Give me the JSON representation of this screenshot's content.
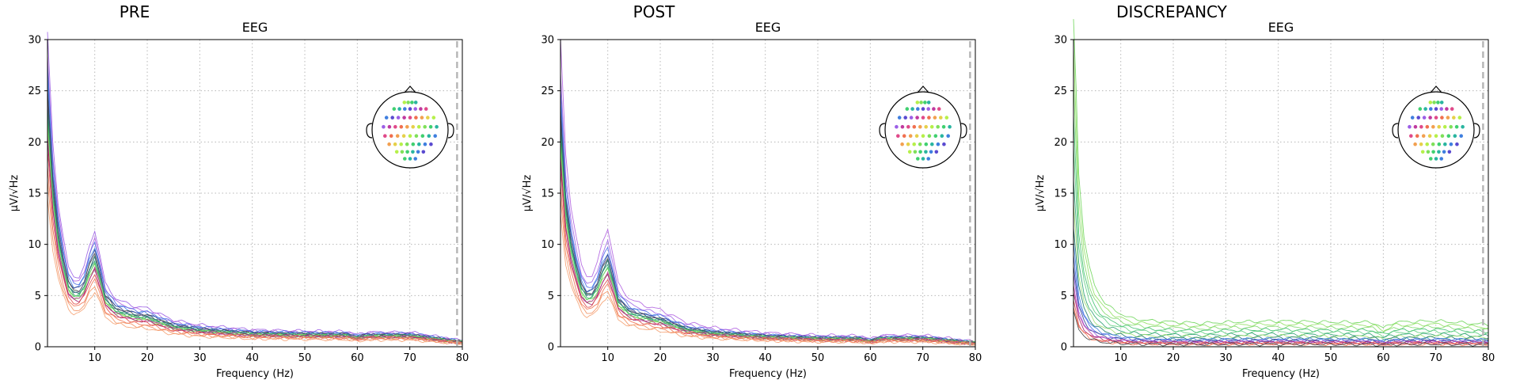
{
  "chart_data": [
    {
      "type": "line",
      "panel_title": "PRE",
      "title": "EEG",
      "xlabel": "Frequency (Hz)",
      "ylabel": "µV/√Hz",
      "xlim": [
        1,
        80
      ],
      "ylim": [
        0,
        30
      ],
      "xticks": [
        10,
        20,
        30,
        40,
        50,
        60,
        70,
        80
      ],
      "yticks": [
        0,
        5,
        10,
        15,
        20,
        25,
        30
      ],
      "grid": true,
      "cutoff_line_hz": 79,
      "sensor_inset": "top-right",
      "profile": {
        "freq": [
          1,
          2,
          3,
          4,
          5,
          6,
          7,
          8,
          9,
          10,
          11,
          12,
          14,
          16,
          18,
          20,
          22,
          25,
          30,
          40,
          50,
          58,
          60,
          62,
          70,
          80
        ],
        "amplitude": [
          26,
          17,
          12,
          9,
          6.6,
          5.8,
          5.8,
          6.6,
          8.4,
          9.6,
          7.6,
          5.2,
          4.0,
          3.6,
          3.3,
          3.2,
          2.8,
          2.2,
          1.8,
          1.4,
          1.3,
          1.25,
          1.0,
          1.2,
          1.2,
          0.5
        ]
      },
      "series": [
        {
          "color": "#9c5fe6",
          "scale": 1.18
        },
        {
          "color": "#b060e0",
          "scale": 1.1
        },
        {
          "color": "#4c6be8",
          "scale": 1.06
        },
        {
          "color": "#3f7fdf",
          "scale": 1.02
        },
        {
          "color": "#2f3f8f",
          "scale": 0.98
        },
        {
          "color": "#444444",
          "scale": 0.95
        },
        {
          "color": "#5a5a8a",
          "scale": 0.92
        },
        {
          "color": "#1a7a6a",
          "scale": 0.9
        },
        {
          "color": "#2aa070",
          "scale": 0.88
        },
        {
          "color": "#3fbf6f",
          "scale": 0.86
        },
        {
          "color": "#6fd65a",
          "scale": 0.84
        },
        {
          "color": "#8fe060",
          "scale": 0.82
        },
        {
          "color": "#c03a9f",
          "scale": 0.8
        },
        {
          "color": "#a0206f",
          "scale": 0.78
        },
        {
          "color": "#e04a4a",
          "scale": 0.74
        },
        {
          "color": "#f07050",
          "scale": 0.68
        },
        {
          "color": "#f29060",
          "scale": 0.62
        },
        {
          "color": "#f5a070",
          "scale": 0.56
        }
      ]
    },
    {
      "type": "line",
      "panel_title": "POST",
      "title": "EEG",
      "xlabel": "Frequency (Hz)",
      "ylabel": "µV/√Hz",
      "xlim": [
        1,
        80
      ],
      "ylim": [
        0,
        30
      ],
      "xticks": [
        10,
        20,
        30,
        40,
        50,
        60,
        70,
        80
      ],
      "yticks": [
        0,
        5,
        10,
        15,
        20,
        25,
        30
      ],
      "grid": true,
      "cutoff_line_hz": 79,
      "sensor_inset": "top-right",
      "profile": {
        "freq": [
          1,
          2,
          3,
          4,
          5,
          6,
          7,
          8,
          9,
          10,
          11,
          12,
          14,
          16,
          18,
          20,
          22,
          25,
          30,
          40,
          50,
          58,
          60,
          62,
          70,
          80
        ],
        "amplitude": [
          24,
          15,
          11,
          8.5,
          6.4,
          5.5,
          5.6,
          6.5,
          8.2,
          9.2,
          7.2,
          4.9,
          3.8,
          3.4,
          3.1,
          2.9,
          2.5,
          1.9,
          1.5,
          1.1,
          0.9,
          0.85,
          0.6,
          0.9,
          0.9,
          0.4
        ]
      },
      "series": [
        {
          "color": "#b060e0",
          "scale": 1.25
        },
        {
          "color": "#9c5fe6",
          "scale": 1.12
        },
        {
          "color": "#4c6be8",
          "scale": 1.05
        },
        {
          "color": "#3f7fdf",
          "scale": 1.0
        },
        {
          "color": "#2f3f8f",
          "scale": 0.97
        },
        {
          "color": "#444444",
          "scale": 0.94
        },
        {
          "color": "#5a5a8a",
          "scale": 0.92
        },
        {
          "color": "#1a7a6a",
          "scale": 0.9
        },
        {
          "color": "#2aa070",
          "scale": 0.88
        },
        {
          "color": "#3fbf6f",
          "scale": 0.85
        },
        {
          "color": "#6fd65a",
          "scale": 0.83
        },
        {
          "color": "#8fe060",
          "scale": 0.8
        },
        {
          "color": "#c03a9f",
          "scale": 0.78
        },
        {
          "color": "#a0206f",
          "scale": 0.76
        },
        {
          "color": "#e04a4a",
          "scale": 0.72
        },
        {
          "color": "#f07050",
          "scale": 0.66
        },
        {
          "color": "#f29060",
          "scale": 0.6
        },
        {
          "color": "#f5a070",
          "scale": 0.54
        }
      ]
    },
    {
      "type": "line",
      "panel_title": "DISCREPANCY",
      "title": "EEG",
      "xlabel": "Frequency (Hz)",
      "ylabel": "µV/√Hz",
      "xlim": [
        1,
        80
      ],
      "ylim": [
        0,
        30
      ],
      "xticks": [
        10,
        20,
        30,
        40,
        50,
        60,
        70,
        80
      ],
      "yticks": [
        0,
        5,
        10,
        15,
        20,
        25,
        30
      ],
      "grid": true,
      "cutoff_line_hz": 79,
      "sensor_inset": "top-right",
      "profile": {
        "freq": [
          1,
          2,
          3,
          4,
          5,
          6,
          7,
          8,
          9,
          10,
          11,
          12,
          14,
          16,
          18,
          20,
          22,
          25,
          30,
          40,
          50,
          58,
          60,
          62,
          70,
          80
        ],
        "amplitude": [
          28,
          14,
          9,
          6.5,
          5.0,
          4.2,
          3.6,
          3.2,
          2.9,
          2.7,
          2.5,
          2.3,
          2.2,
          2.1,
          2.1,
          2.0,
          2.0,
          1.9,
          2.0,
          2.1,
          2.0,
          2.0,
          1.5,
          2.0,
          2.1,
          1.8
        ]
      },
      "series": [
        {
          "color": "#6fd65a",
          "scale": 1.2
        },
        {
          "color": "#8fe060",
          "scale": 1.05
        },
        {
          "color": "#7fd86a",
          "scale": 0.92
        },
        {
          "color": "#3fbf6f",
          "scale": 0.8
        },
        {
          "color": "#5fcf7f",
          "scale": 0.7
        },
        {
          "color": "#2aa070",
          "scale": 0.58
        },
        {
          "color": "#9ee070",
          "scale": 0.5
        },
        {
          "color": "#1a7a6a",
          "scale": 0.42
        },
        {
          "color": "#3f7fdf",
          "scale": 0.36
        },
        {
          "color": "#4c6be8",
          "scale": 0.32
        },
        {
          "color": "#2f3f8f",
          "scale": 0.28
        },
        {
          "color": "#9c5fe6",
          "scale": 0.25
        },
        {
          "color": "#c03a9f",
          "scale": 0.22
        },
        {
          "color": "#a0206f",
          "scale": 0.19
        },
        {
          "color": "#e04a4a",
          "scale": 0.16
        },
        {
          "color": "#f07050",
          "scale": 0.14
        },
        {
          "color": "#444444",
          "scale": 0.12
        }
      ]
    }
  ]
}
